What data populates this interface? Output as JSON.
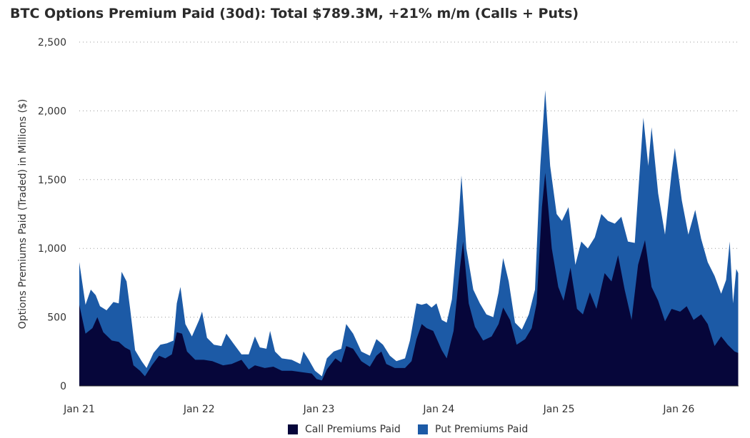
{
  "colors": {
    "calls": "#06063a",
    "puts": "#1c5aa6",
    "grid": "#9a9a9a",
    "axis": "#2b2b2b"
  },
  "chart_data": {
    "type": "area",
    "stacked": true,
    "title": "BTC Options Premium Paid (30d): Total $789.3M, +21% m/m (Calls + Puts)",
    "ylabel": "Options Premiums Paid  (Traded) in Millions ($)",
    "xlabel": "",
    "ylim": [
      0,
      2500
    ],
    "yticks": [
      0,
      500,
      1000,
      1500,
      2000,
      2500
    ],
    "ytick_labels": [
      "0",
      "500",
      "1,000",
      "1,500",
      "2,000",
      "2,500"
    ],
    "xlim": [
      "2021-01-01",
      "2026-07-02"
    ],
    "xticks": [
      {
        "x": "2021-01-01",
        "label": "Jan 21"
      },
      {
        "x": "2022-01-01",
        "label": "Jan 22"
      },
      {
        "x": "2023-01-01",
        "label": "Jan 23"
      },
      {
        "x": "2024-01-01",
        "label": "Jan 24"
      },
      {
        "x": "2025-01-01",
        "label": "Jan 25"
      },
      {
        "x": "2026-01-01",
        "label": "Jan 26"
      }
    ],
    "grid": "horizontal-dotted",
    "legend_position": "bottom-center",
    "series": [
      {
        "name": "Call Premium Paid",
        "points": [
          [
            "2021-01-01",
            590
          ],
          [
            "2021-01-20",
            380
          ],
          [
            "2021-02-10",
            420
          ],
          [
            "2021-02-25",
            500
          ],
          [
            "2021-03-15",
            390
          ],
          [
            "2021-04-10",
            330
          ],
          [
            "2021-05-01",
            320
          ],
          [
            "2021-05-20",
            280
          ],
          [
            "2021-06-05",
            260
          ],
          [
            "2021-06-15",
            150
          ],
          [
            "2021-07-05",
            110
          ],
          [
            "2021-07-20",
            70
          ],
          [
            "2021-08-10",
            150
          ],
          [
            "2021-09-01",
            220
          ],
          [
            "2021-09-20",
            200
          ],
          [
            "2021-10-10",
            230
          ],
          [
            "2021-10-25",
            390
          ],
          [
            "2021-11-10",
            380
          ],
          [
            "2021-11-25",
            250
          ],
          [
            "2021-12-20",
            190
          ],
          [
            "2022-01-15",
            190
          ],
          [
            "2022-02-10",
            180
          ],
          [
            "2022-03-15",
            150
          ],
          [
            "2022-04-10",
            160
          ],
          [
            "2022-05-10",
            190
          ],
          [
            "2022-06-01",
            120
          ],
          [
            "2022-06-20",
            150
          ],
          [
            "2022-07-20",
            130
          ],
          [
            "2022-08-15",
            140
          ],
          [
            "2022-09-10",
            110
          ],
          [
            "2022-10-10",
            110
          ],
          [
            "2022-11-10",
            100
          ],
          [
            "2022-12-10",
            90
          ],
          [
            "2022-12-25",
            50
          ],
          [
            "2023-01-10",
            40
          ],
          [
            "2023-01-25",
            120
          ],
          [
            "2023-02-20",
            200
          ],
          [
            "2023-03-10",
            170
          ],
          [
            "2023-03-25",
            290
          ],
          [
            "2023-04-15",
            270
          ],
          [
            "2023-05-10",
            180
          ],
          [
            "2023-06-05",
            140
          ],
          [
            "2023-06-25",
            220
          ],
          [
            "2023-07-10",
            250
          ],
          [
            "2023-07-25",
            160
          ],
          [
            "2023-08-20",
            130
          ],
          [
            "2023-09-20",
            130
          ],
          [
            "2023-10-10",
            180
          ],
          [
            "2023-10-25",
            340
          ],
          [
            "2023-11-10",
            450
          ],
          [
            "2023-11-25",
            420
          ],
          [
            "2023-12-15",
            400
          ],
          [
            "2024-01-10",
            260
          ],
          [
            "2024-01-25",
            200
          ],
          [
            "2024-02-15",
            400
          ],
          [
            "2024-03-05",
            850
          ],
          [
            "2024-03-15",
            1050
          ],
          [
            "2024-04-01",
            600
          ],
          [
            "2024-04-20",
            430
          ],
          [
            "2024-05-15",
            330
          ],
          [
            "2024-06-10",
            360
          ],
          [
            "2024-07-01",
            450
          ],
          [
            "2024-07-15",
            570
          ],
          [
            "2024-08-05",
            480
          ],
          [
            "2024-08-25",
            300
          ],
          [
            "2024-09-20",
            340
          ],
          [
            "2024-10-10",
            420
          ],
          [
            "2024-10-25",
            600
          ],
          [
            "2024-11-10",
            1300
          ],
          [
            "2024-11-20",
            1550
          ],
          [
            "2024-12-10",
            1000
          ],
          [
            "2024-12-30",
            720
          ],
          [
            "2025-01-15",
            620
          ],
          [
            "2025-02-05",
            860
          ],
          [
            "2025-02-25",
            560
          ],
          [
            "2025-03-15",
            520
          ],
          [
            "2025-04-05",
            680
          ],
          [
            "2025-04-25",
            560
          ],
          [
            "2025-05-20",
            820
          ],
          [
            "2025-06-10",
            760
          ],
          [
            "2025-06-30",
            950
          ],
          [
            "2025-07-20",
            700
          ],
          [
            "2025-08-10",
            480
          ],
          [
            "2025-08-30",
            880
          ],
          [
            "2025-09-20",
            1060
          ],
          [
            "2025-10-10",
            720
          ],
          [
            "2025-10-30",
            620
          ],
          [
            "2025-11-20",
            470
          ],
          [
            "2025-12-10",
            560
          ],
          [
            "2026-01-05",
            540
          ],
          [
            "2026-01-25",
            580
          ],
          [
            "2026-02-15",
            480
          ],
          [
            "2026-03-10",
            520
          ],
          [
            "2026-03-30",
            450
          ],
          [
            "2026-04-20",
            290
          ],
          [
            "2026-05-10",
            360
          ],
          [
            "2026-05-30",
            300
          ],
          [
            "2026-06-20",
            250
          ],
          [
            "2026-07-01",
            240
          ]
        ]
      },
      {
        "name": "Put Premium Paid",
        "points": [
          [
            "2021-01-01",
            900
          ],
          [
            "2021-01-20",
            590
          ],
          [
            "2021-02-05",
            700
          ],
          [
            "2021-02-20",
            660
          ],
          [
            "2021-03-05",
            580
          ],
          [
            "2021-03-25",
            550
          ],
          [
            "2021-04-15",
            610
          ],
          [
            "2021-05-01",
            600
          ],
          [
            "2021-05-10",
            830
          ],
          [
            "2021-05-25",
            760
          ],
          [
            "2021-06-05",
            560
          ],
          [
            "2021-06-20",
            260
          ],
          [
            "2021-07-10",
            180
          ],
          [
            "2021-07-25",
            130
          ],
          [
            "2021-08-15",
            240
          ],
          [
            "2021-09-05",
            300
          ],
          [
            "2021-09-25",
            310
          ],
          [
            "2021-10-15",
            330
          ],
          [
            "2021-10-25",
            600
          ],
          [
            "2021-11-05",
            720
          ],
          [
            "2021-11-20",
            450
          ],
          [
            "2021-12-10",
            360
          ],
          [
            "2022-01-01",
            480
          ],
          [
            "2022-01-10",
            540
          ],
          [
            "2022-01-25",
            350
          ],
          [
            "2022-02-15",
            300
          ],
          [
            "2022-03-10",
            290
          ],
          [
            "2022-03-25",
            380
          ],
          [
            "2022-04-15",
            310
          ],
          [
            "2022-05-10",
            230
          ],
          [
            "2022-06-01",
            230
          ],
          [
            "2022-06-20",
            360
          ],
          [
            "2022-07-05",
            280
          ],
          [
            "2022-07-25",
            270
          ],
          [
            "2022-08-05",
            400
          ],
          [
            "2022-08-20",
            250
          ],
          [
            "2022-09-10",
            200
          ],
          [
            "2022-10-10",
            190
          ],
          [
            "2022-11-05",
            160
          ],
          [
            "2022-11-15",
            250
          ],
          [
            "2022-12-01",
            190
          ],
          [
            "2022-12-20",
            110
          ],
          [
            "2023-01-10",
            70
          ],
          [
            "2023-01-25",
            200
          ],
          [
            "2023-02-15",
            250
          ],
          [
            "2023-03-10",
            270
          ],
          [
            "2023-03-25",
            450
          ],
          [
            "2023-04-15",
            380
          ],
          [
            "2023-05-10",
            250
          ],
          [
            "2023-06-05",
            220
          ],
          [
            "2023-06-25",
            340
          ],
          [
            "2023-07-15",
            300
          ],
          [
            "2023-08-05",
            220
          ],
          [
            "2023-08-25",
            180
          ],
          [
            "2023-09-20",
            200
          ],
          [
            "2023-10-05",
            330
          ],
          [
            "2023-10-25",
            600
          ],
          [
            "2023-11-10",
            590
          ],
          [
            "2023-11-25",
            600
          ],
          [
            "2023-12-10",
            570
          ],
          [
            "2023-12-25",
            600
          ],
          [
            "2024-01-10",
            480
          ],
          [
            "2024-01-25",
            460
          ],
          [
            "2024-02-10",
            630
          ],
          [
            "2024-03-01",
            1200
          ],
          [
            "2024-03-10",
            1530
          ],
          [
            "2024-03-25",
            1000
          ],
          [
            "2024-04-15",
            700
          ],
          [
            "2024-05-05",
            600
          ],
          [
            "2024-05-25",
            520
          ],
          [
            "2024-06-15",
            500
          ],
          [
            "2024-07-01",
            680
          ],
          [
            "2024-07-15",
            930
          ],
          [
            "2024-08-01",
            760
          ],
          [
            "2024-08-20",
            460
          ],
          [
            "2024-09-10",
            410
          ],
          [
            "2024-10-01",
            520
          ],
          [
            "2024-10-20",
            700
          ],
          [
            "2024-11-05",
            1600
          ],
          [
            "2024-11-20",
            2150
          ],
          [
            "2024-12-05",
            1600
          ],
          [
            "2024-12-25",
            1250
          ],
          [
            "2025-01-10",
            1200
          ],
          [
            "2025-01-30",
            1300
          ],
          [
            "2025-02-20",
            880
          ],
          [
            "2025-03-10",
            1050
          ],
          [
            "2025-03-30",
            1000
          ],
          [
            "2025-04-20",
            1080
          ],
          [
            "2025-05-10",
            1250
          ],
          [
            "2025-05-30",
            1200
          ],
          [
            "2025-06-20",
            1180
          ],
          [
            "2025-07-10",
            1230
          ],
          [
            "2025-07-30",
            1050
          ],
          [
            "2025-08-20",
            1040
          ],
          [
            "2025-09-15",
            1950
          ],
          [
            "2025-09-30",
            1600
          ],
          [
            "2025-10-10",
            1880
          ],
          [
            "2025-10-30",
            1400
          ],
          [
            "2025-11-20",
            1100
          ],
          [
            "2025-12-10",
            1550
          ],
          [
            "2025-12-20",
            1730
          ],
          [
            "2026-01-10",
            1350
          ],
          [
            "2026-01-30",
            1100
          ],
          [
            "2026-02-20",
            1280
          ],
          [
            "2026-03-10",
            1070
          ],
          [
            "2026-03-30",
            900
          ],
          [
            "2026-04-20",
            800
          ],
          [
            "2026-05-10",
            670
          ],
          [
            "2026-05-25",
            770
          ],
          [
            "2026-06-05",
            1050
          ],
          [
            "2026-06-15",
            600
          ],
          [
            "2026-06-25",
            850
          ],
          [
            "2026-07-01",
            820
          ]
        ]
      }
    ]
  },
  "legend": {
    "calls_label": "Call Premiums Paid",
    "puts_label": "Put Premiums Paid"
  }
}
